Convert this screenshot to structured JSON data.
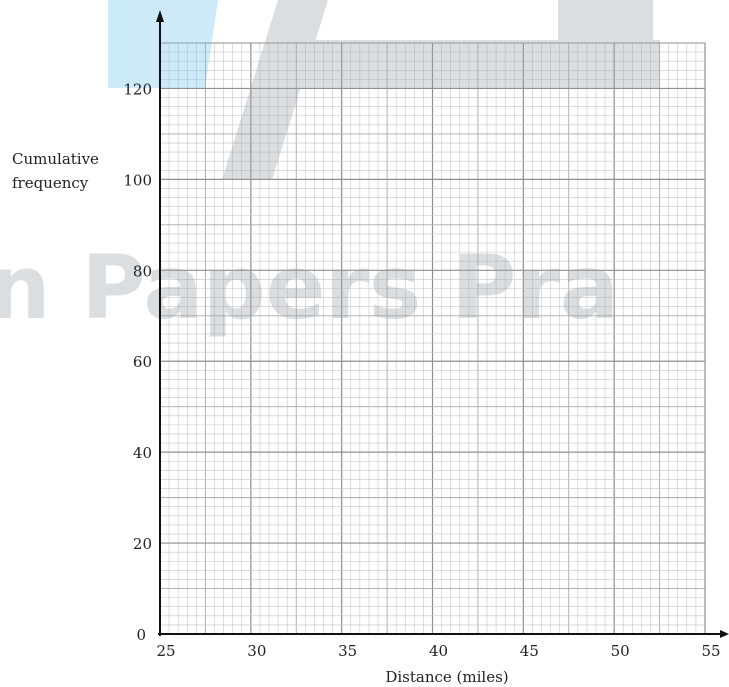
{
  "chart_data": {
    "type": "line",
    "title": "",
    "xlabel": "Distance (miles)",
    "ylabel": [
      "Cumulative",
      "frequency"
    ],
    "xlim": [
      25,
      55
    ],
    "ylim": [
      0,
      130
    ],
    "x_ticks": [
      25,
      30,
      35,
      40,
      45,
      50,
      55
    ],
    "y_ticks": [
      0,
      20,
      40,
      60,
      80,
      100,
      120
    ],
    "grid": {
      "major_x": 5,
      "major_y": 20,
      "minor_x": 0.5,
      "minor_y": 2
    },
    "series": []
  },
  "watermark": {
    "text": "n Papers Pra",
    "colors": {
      "blue": "#6ec6ea",
      "gray": "#9aa3ac"
    }
  },
  "colors": {
    "grid_minor": "#c6c6c6",
    "grid_major": "#8f8f8f",
    "axis": "#111111"
  }
}
